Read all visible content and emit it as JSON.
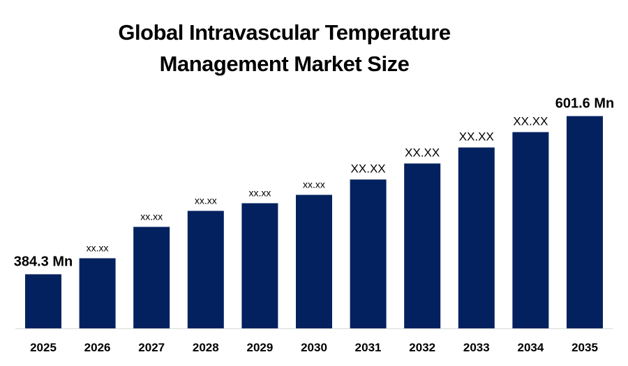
{
  "chart_data": {
    "type": "bar",
    "title": "Global Intravascular Temperature Management Market Size",
    "title_lines": [
      "Global Intravascular Temperature",
      "Management Market Size"
    ],
    "categories": [
      "2025",
      "2026",
      "2027",
      "2028",
      "2029",
      "2030",
      "2031",
      "2032",
      "2033",
      "2034",
      "2035"
    ],
    "values": [
      384.3,
      406.3,
      449.4,
      471.4,
      481.9,
      493.4,
      514.5,
      536.5,
      558.5,
      579.6,
      601.6
    ],
    "data_labels": [
      "384.3 Mn",
      "xx.xx",
      "xx.xx",
      "xx.xx",
      "xx.xx",
      "xx.xx",
      "XX.XX",
      "XX.XX",
      "XX.XX",
      "XX.XX",
      "601.6 Mn"
    ],
    "xlabel": "",
    "ylabel": "",
    "ylim": [
      310,
      650
    ],
    "grid": false,
    "bar_color": "#03215F"
  }
}
